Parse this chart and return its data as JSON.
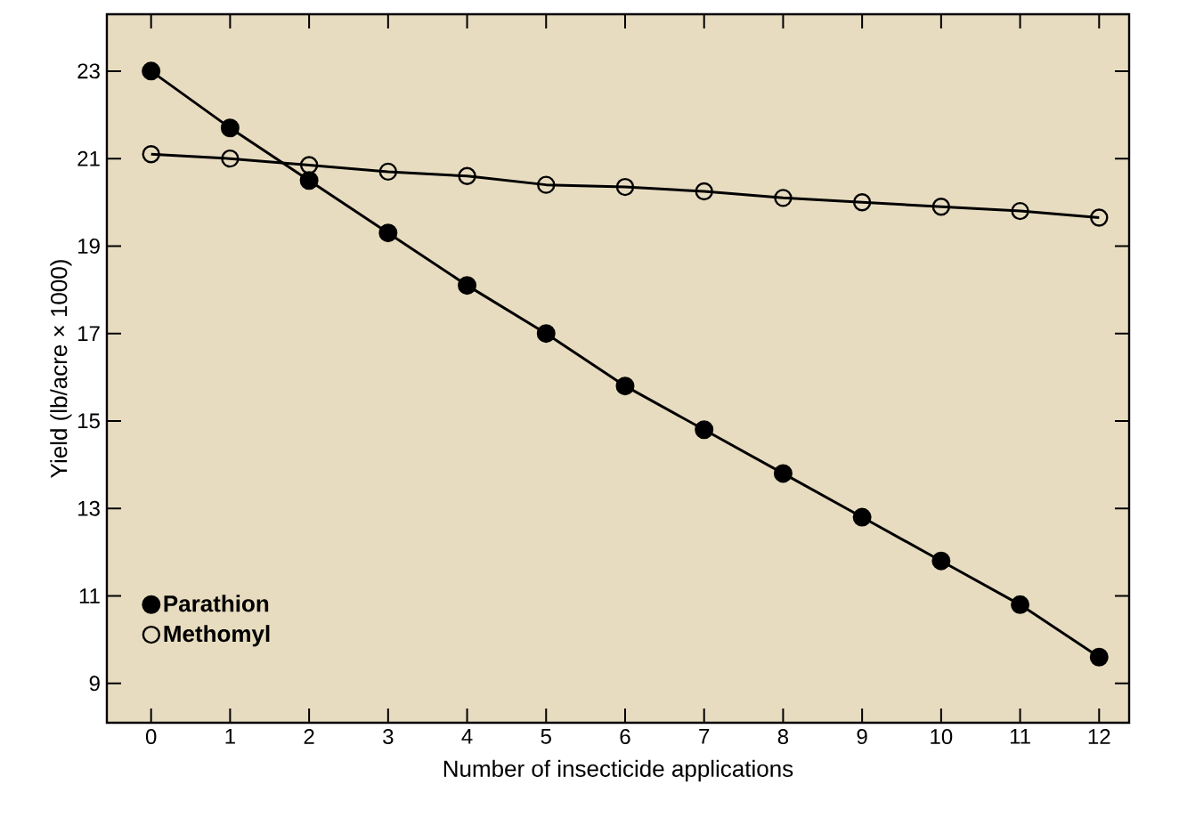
{
  "chart_data": {
    "type": "line",
    "xlabel": "Number of insecticide applications",
    "ylabel": "Yield (lb/acre × 1000)",
    "x": [
      0,
      1,
      2,
      3,
      4,
      5,
      6,
      7,
      8,
      9,
      10,
      11,
      12
    ],
    "series": [
      {
        "name": "Parathion",
        "color": "#000000",
        "marker": "circle",
        "values": [
          23.0,
          21.7,
          20.5,
          19.3,
          18.1,
          17.0,
          15.8,
          14.8,
          13.8,
          12.8,
          11.8,
          10.8,
          9.6
        ]
      },
      {
        "name": "Methomyl",
        "color": "#000000",
        "marker": "open circle",
        "values": [
          21.1,
          21.0,
          20.85,
          20.7,
          20.6,
          20.4,
          20.35,
          20.25,
          20.1,
          20.0,
          19.9,
          19.8,
          19.65
        ]
      }
    ],
    "xlim": [
      -0.56,
      12.38
    ],
    "ylim": [
      8.1,
      24.3
    ],
    "xticks": [
      0,
      1,
      2,
      3,
      4,
      5,
      6,
      7,
      8,
      9,
      10,
      11,
      12
    ],
    "yticks": [
      9,
      11,
      13,
      15,
      17,
      19,
      21,
      23
    ],
    "legend": "bottom left",
    "grid": false
  }
}
